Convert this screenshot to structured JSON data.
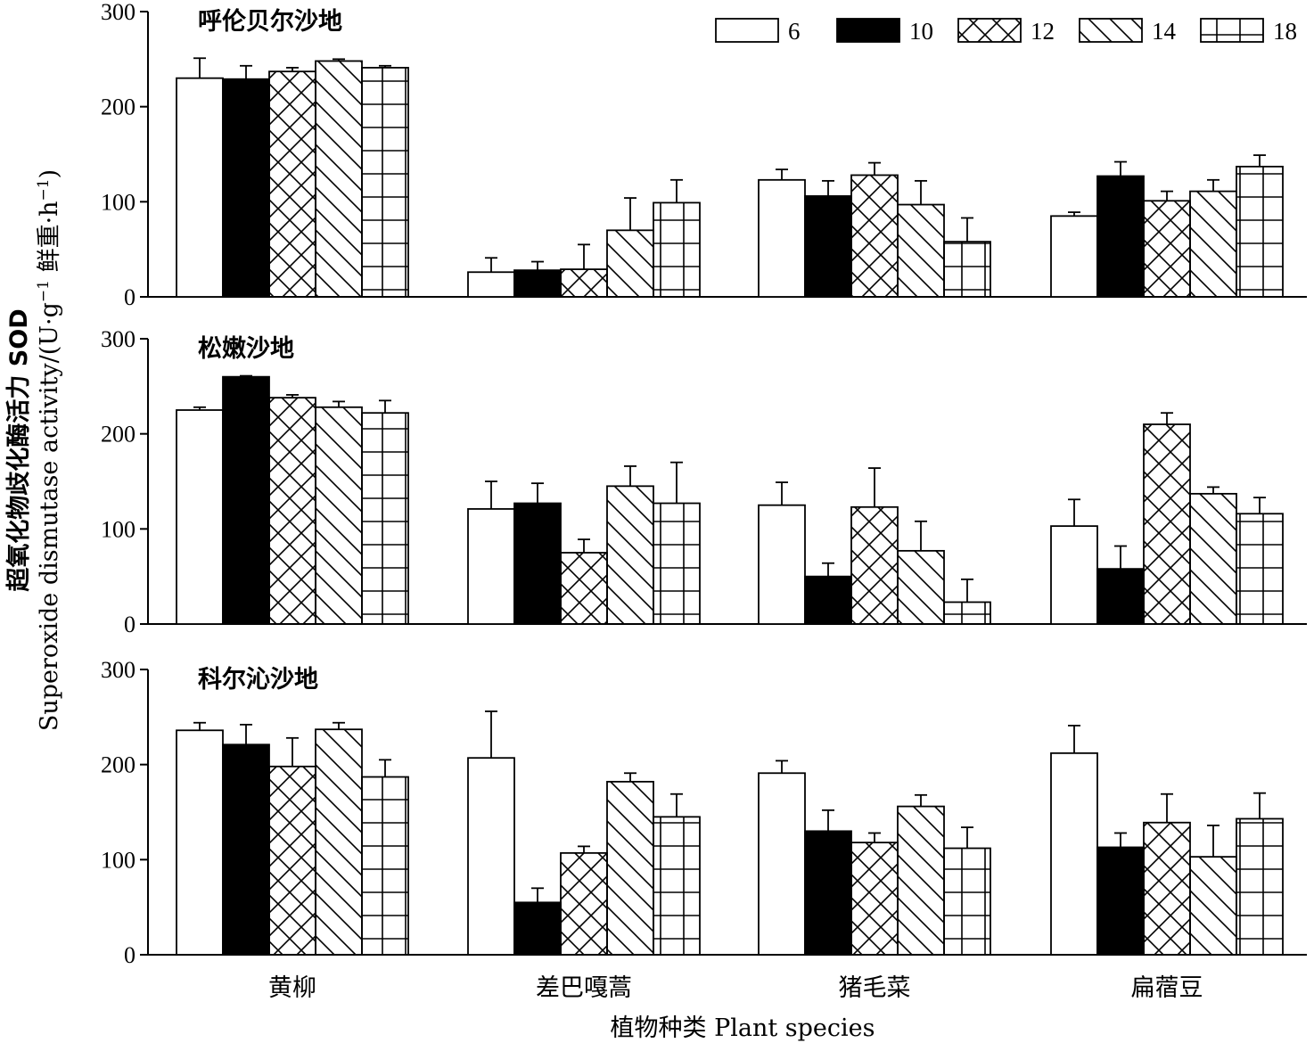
{
  "chart_data": {
    "type": "bar",
    "xlabel": "植物种类 Plant species",
    "ylabel_cn": "超氧化物歧化酶活力 SOD",
    "ylabel_en": "Superoxide dismutase activity/(U·g",
    "ylabel_en_sup1": "−1",
    "ylabel_en_mid": " 鲜重·h",
    "ylabel_en_sup2": "−1",
    "ylabel_en_end": ")",
    "categories": [
      "黄柳",
      "差巴嘎蒿",
      "猪毛菜",
      "扁蓿豆"
    ],
    "ylim": [
      0,
      300
    ],
    "yticks": [
      0,
      100,
      200,
      300
    ],
    "legend": [
      "6",
      "10",
      "12",
      "14",
      "18"
    ],
    "legend_position": "top-right",
    "panels": [
      {
        "title": "呼伦贝尔沙地",
        "series": [
          {
            "name": "6",
            "values": [
              230,
              26,
              123,
              85
            ],
            "errors": [
              21,
              15,
              11,
              4
            ]
          },
          {
            "name": "10",
            "values": [
              229,
              28,
              106,
              127
            ],
            "errors": [
              14,
              9,
              16,
              15
            ]
          },
          {
            "name": "12",
            "values": [
              237,
              29,
              128,
              101
            ],
            "errors": [
              4,
              26,
              13,
              10
            ]
          },
          {
            "name": "14",
            "values": [
              248,
              70,
              97,
              111
            ],
            "errors": [
              2,
              34,
              25,
              12
            ]
          },
          {
            "name": "18",
            "values": [
              241,
              99,
              58,
              137
            ],
            "errors": [
              2,
              24,
              25,
              12
            ]
          }
        ]
      },
      {
        "title": "松嫩沙地",
        "series": [
          {
            "name": "6",
            "values": [
              225,
              121,
              125,
              103
            ],
            "errors": [
              3,
              29,
              24,
              28
            ]
          },
          {
            "name": "10",
            "values": [
              260,
              127,
              50,
              58
            ],
            "errors": [
              1,
              21,
              14,
              24
            ]
          },
          {
            "name": "12",
            "values": [
              238,
              75,
              123,
              210
            ],
            "errors": [
              3,
              14,
              41,
              12
            ]
          },
          {
            "name": "14",
            "values": [
              228,
              145,
              77,
              137
            ],
            "errors": [
              6,
              21,
              31,
              7
            ]
          },
          {
            "name": "18",
            "values": [
              222,
              127,
              23,
              116
            ],
            "errors": [
              13,
              43,
              24,
              17
            ]
          }
        ]
      },
      {
        "title": "科尔沁沙地",
        "series": [
          {
            "name": "6",
            "values": [
              236,
              207,
              191,
              212
            ],
            "errors": [
              8,
              49,
              13,
              29
            ]
          },
          {
            "name": "10",
            "values": [
              221,
              55,
              130,
              113
            ],
            "errors": [
              21,
              15,
              22,
              15
            ]
          },
          {
            "name": "12",
            "values": [
              198,
              107,
              118,
              139
            ],
            "errors": [
              30,
              7,
              10,
              30
            ]
          },
          {
            "name": "14",
            "values": [
              237,
              182,
              156,
              103
            ],
            "errors": [
              7,
              9,
              12,
              33
            ]
          },
          {
            "name": "18",
            "values": [
              187,
              145,
              112,
              143
            ],
            "errors": [
              18,
              24,
              22,
              27
            ]
          }
        ]
      }
    ]
  }
}
